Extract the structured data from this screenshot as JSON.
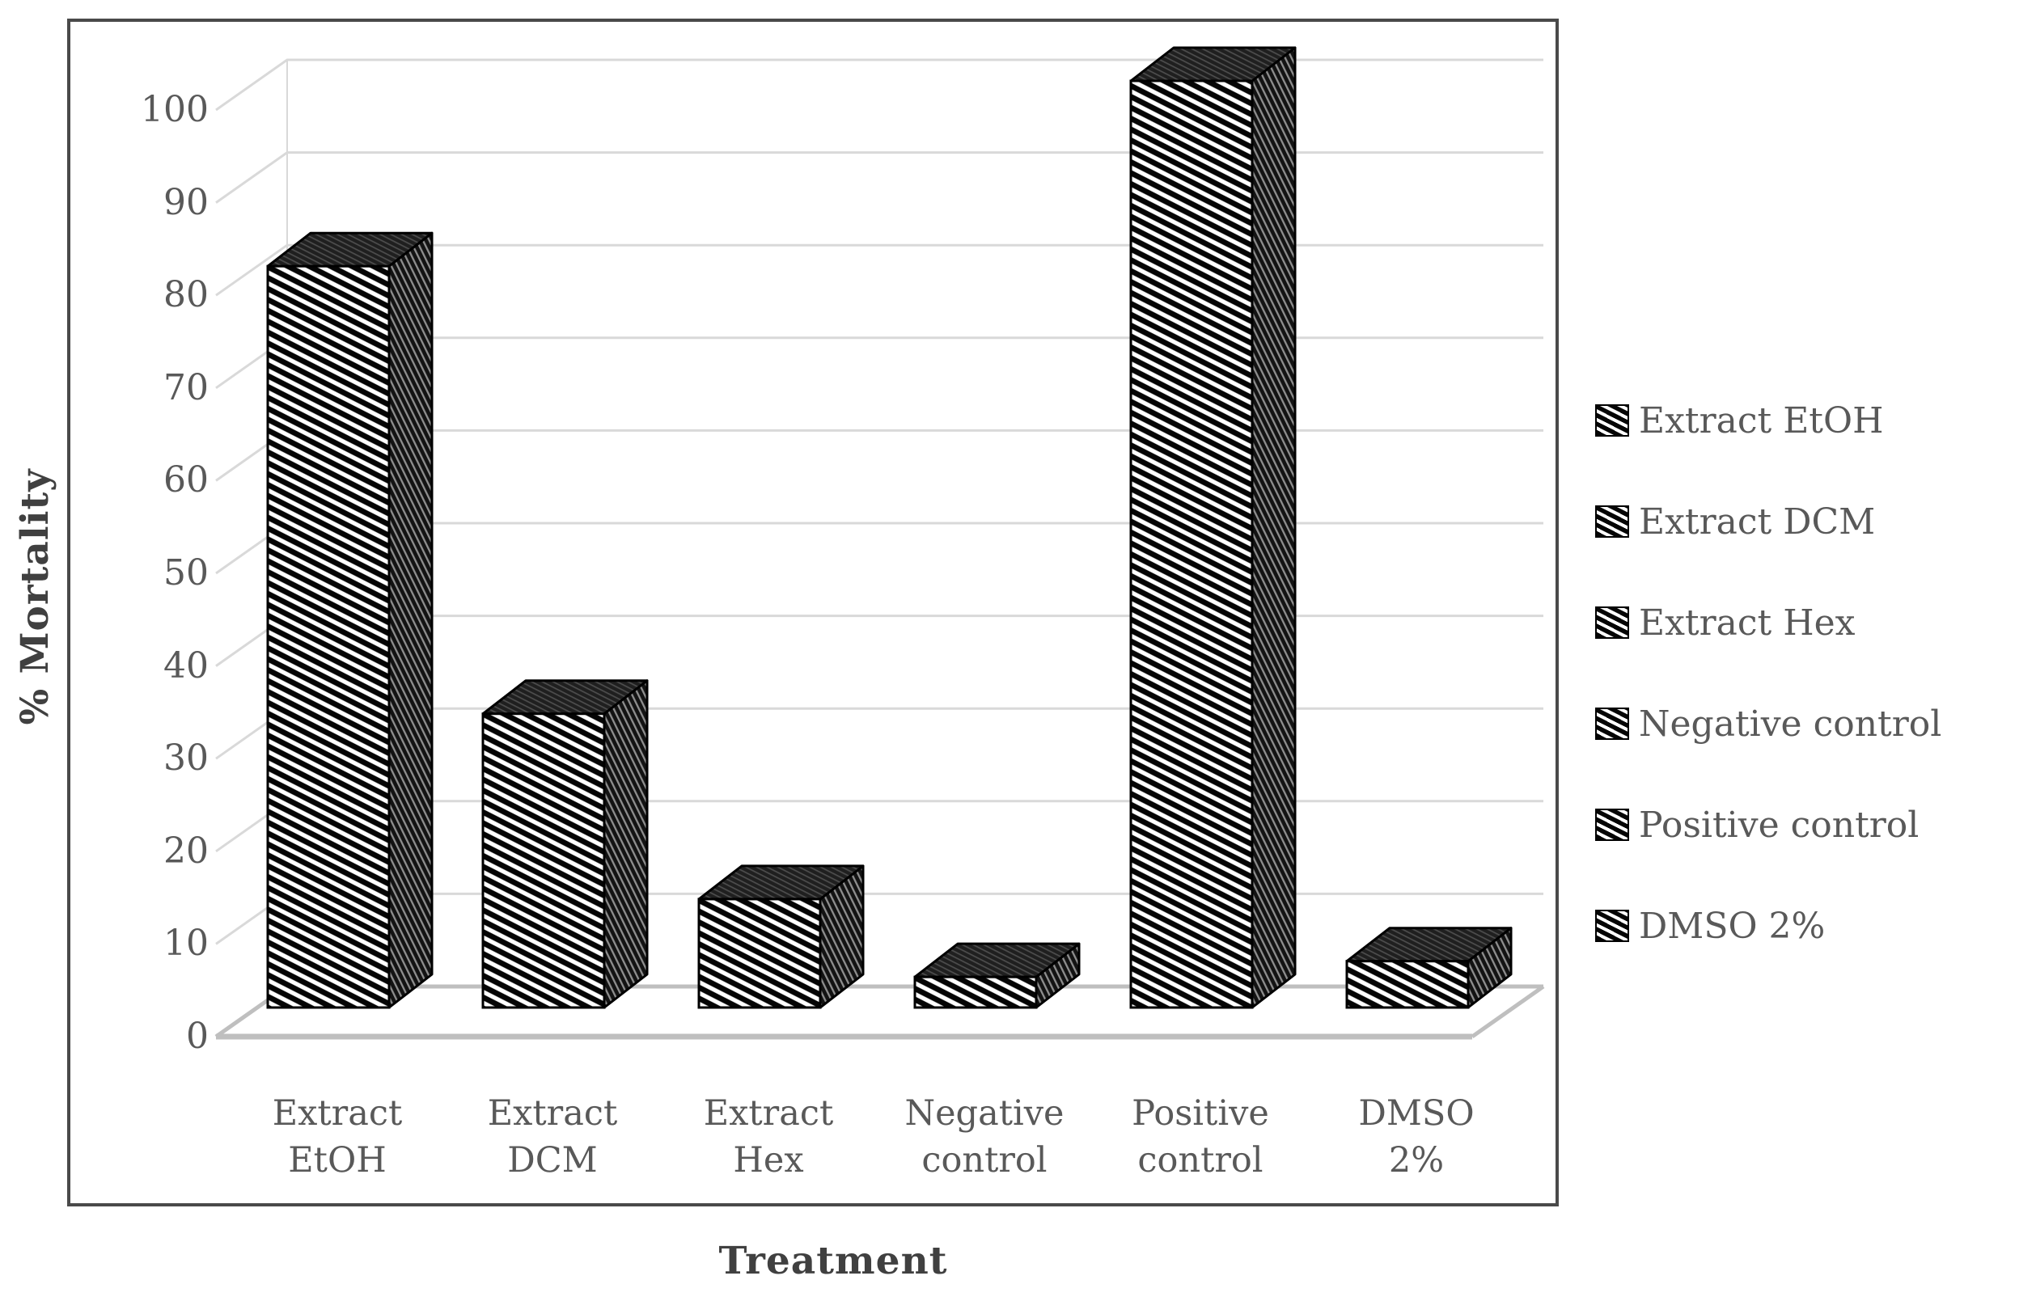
{
  "chart_data": {
    "type": "bar",
    "projection": "3d-column",
    "title": "",
    "xlabel": "Treatment",
    "ylabel": "% Mortality",
    "categories": [
      "Extract EtOH",
      "Extract DCM",
      "Extract Hex",
      "Negative control",
      "Positive control",
      "DMSO 2%"
    ],
    "category_label_lines": [
      [
        "Extract",
        "EtOH"
      ],
      [
        "Extract",
        "DCM"
      ],
      [
        "Extract",
        "Hex"
      ],
      [
        "Negative",
        "control"
      ],
      [
        "Positive",
        "control"
      ],
      [
        "DMSO",
        "2%"
      ]
    ],
    "values": [
      80,
      31.7,
      11.7,
      3.3,
      100,
      5
    ],
    "ylim": [
      0,
      100
    ],
    "yticks": [
      0,
      10,
      20,
      30,
      40,
      50,
      60,
      70,
      80,
      90,
      100
    ],
    "grid": true,
    "legend_position": "right",
    "legend_entries": [
      "Extract EtOH",
      "Extract DCM",
      "Extract Hex",
      "Negative control",
      "Positive control",
      "DMSO 2%"
    ],
    "bar_style": "black-white downward-diagonal hatch",
    "colors": {
      "bar_fill": "#050505",
      "bar_hatch": "#ffffff",
      "gridline": "#d9d9d9",
      "floor_edge": "#bfbfbf",
      "frame": "#4a4a4a",
      "tick_text": "#595959",
      "title_text": "#404040",
      "background": "#ffffff"
    }
  }
}
